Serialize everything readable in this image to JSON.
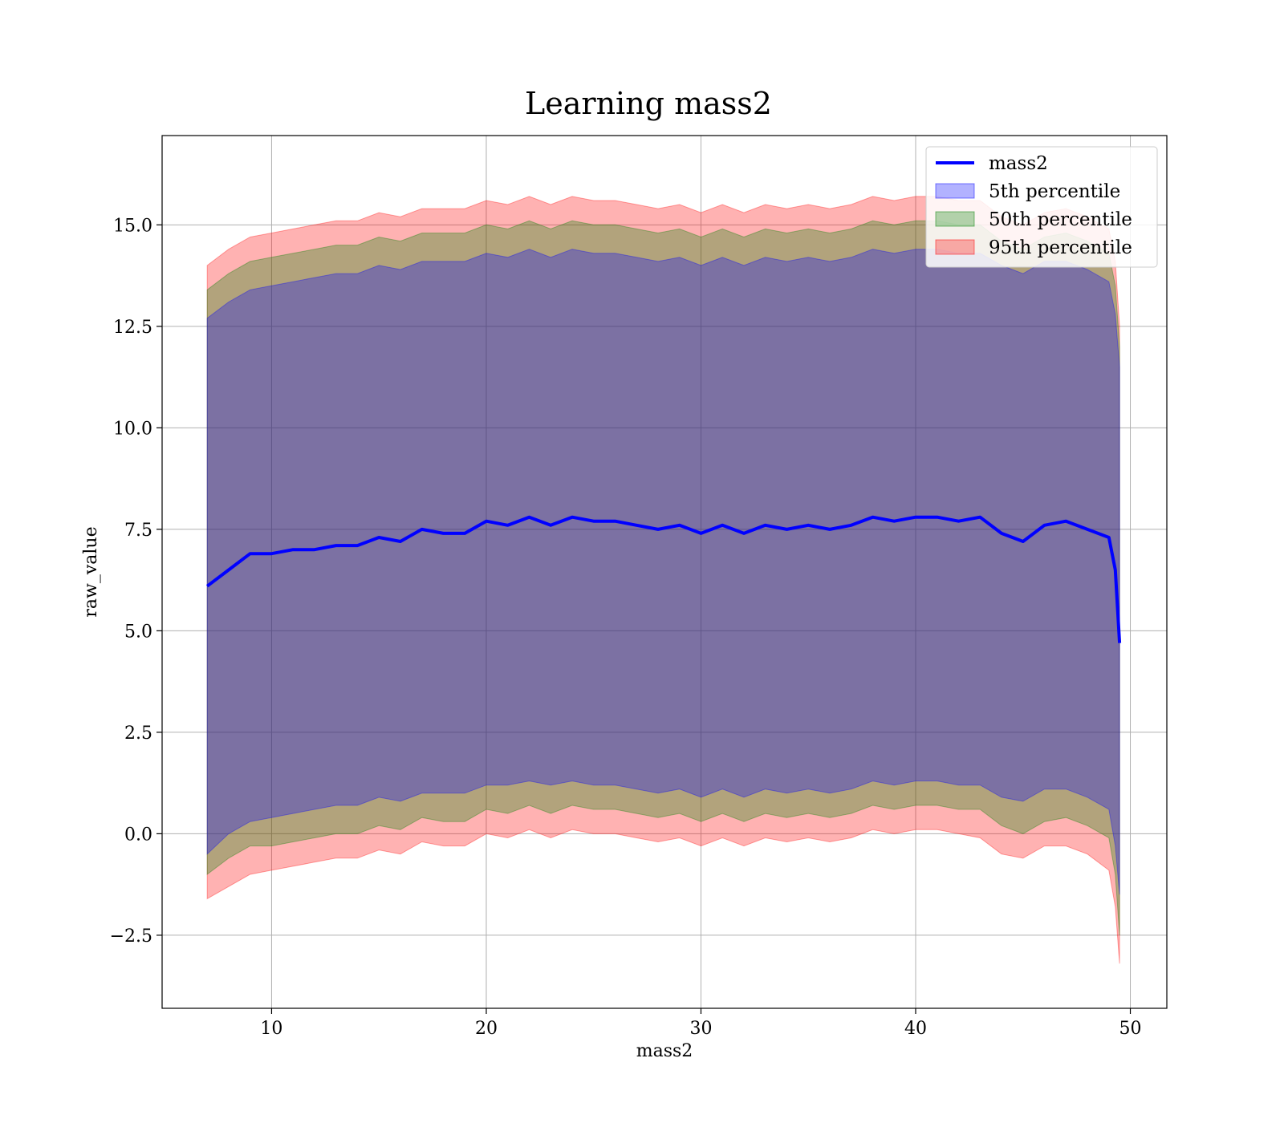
{
  "chart_data": {
    "type": "line",
    "title": "Learning mass2",
    "xlabel": "mass2",
    "ylabel": "raw_value",
    "xlim": [
      4.9,
      51.7
    ],
    "ylim": [
      -4.3,
      17.2
    ],
    "xticks": [
      10,
      20,
      30,
      40,
      50
    ],
    "xtick_labels": [
      "10",
      "20",
      "30",
      "40",
      "50"
    ],
    "yticks": [
      -2.5,
      0.0,
      2.5,
      5.0,
      7.5,
      10.0,
      12.5,
      15.0
    ],
    "ytick_labels": [
      "−2.5",
      "0.0",
      "2.5",
      "5.0",
      "7.5",
      "10.0",
      "12.5",
      "15.0"
    ],
    "grid": true,
    "legend_position": "top-right",
    "x": [
      7.0,
      8.0,
      9.0,
      10.0,
      11.0,
      12.0,
      13.0,
      14.0,
      15.0,
      16.0,
      17.0,
      18.0,
      19.0,
      20.0,
      21.0,
      22.0,
      23.0,
      24.0,
      25.0,
      26.0,
      27.0,
      28.0,
      29.0,
      30.0,
      31.0,
      32.0,
      33.0,
      34.0,
      35.0,
      36.0,
      37.0,
      38.0,
      39.0,
      40.0,
      41.0,
      42.0,
      43.0,
      44.0,
      45.0,
      46.0,
      47.0,
      48.0,
      49.0,
      49.3,
      49.5
    ],
    "series": [
      {
        "name": "mass2",
        "kind": "line",
        "color": "#0000ff",
        "values": [
          6.1,
          6.5,
          6.9,
          6.9,
          7.0,
          7.0,
          7.1,
          7.1,
          7.3,
          7.2,
          7.5,
          7.4,
          7.4,
          7.7,
          7.6,
          7.8,
          7.6,
          7.8,
          7.7,
          7.7,
          7.6,
          7.5,
          7.6,
          7.4,
          7.6,
          7.4,
          7.6,
          7.5,
          7.6,
          7.5,
          7.6,
          7.8,
          7.7,
          7.8,
          7.8,
          7.7,
          7.8,
          7.4,
          7.2,
          7.6,
          7.7,
          7.5,
          7.3,
          6.5,
          4.7
        ]
      },
      {
        "name": "5th percentile",
        "kind": "band",
        "color": "#0000ff",
        "alpha": 0.3,
        "lower": [
          -0.5,
          0.0,
          0.3,
          0.4,
          0.5,
          0.6,
          0.7,
          0.7,
          0.9,
          0.8,
          1.0,
          1.0,
          1.0,
          1.2,
          1.2,
          1.3,
          1.2,
          1.3,
          1.2,
          1.2,
          1.1,
          1.0,
          1.1,
          0.9,
          1.1,
          0.9,
          1.1,
          1.0,
          1.1,
          1.0,
          1.1,
          1.3,
          1.2,
          1.3,
          1.3,
          1.2,
          1.2,
          0.9,
          0.8,
          1.1,
          1.1,
          0.9,
          0.6,
          -0.3,
          -1.5
        ],
        "upper": [
          12.7,
          13.1,
          13.4,
          13.5,
          13.6,
          13.7,
          13.8,
          13.8,
          14.0,
          13.9,
          14.1,
          14.1,
          14.1,
          14.3,
          14.2,
          14.4,
          14.2,
          14.4,
          14.3,
          14.3,
          14.2,
          14.1,
          14.2,
          14.0,
          14.2,
          14.0,
          14.2,
          14.1,
          14.2,
          14.1,
          14.2,
          14.4,
          14.3,
          14.4,
          14.4,
          14.3,
          14.3,
          14.0,
          13.8,
          14.1,
          14.1,
          13.9,
          13.6,
          12.8,
          11.5
        ]
      },
      {
        "name": "50th percentile",
        "kind": "band",
        "color": "#008000",
        "alpha": 0.3,
        "lower": [
          -1.0,
          -0.6,
          -0.3,
          -0.3,
          -0.2,
          -0.1,
          0.0,
          0.0,
          0.2,
          0.1,
          0.4,
          0.3,
          0.3,
          0.6,
          0.5,
          0.7,
          0.5,
          0.7,
          0.6,
          0.6,
          0.5,
          0.4,
          0.5,
          0.3,
          0.5,
          0.3,
          0.5,
          0.4,
          0.5,
          0.4,
          0.5,
          0.7,
          0.6,
          0.7,
          0.7,
          0.6,
          0.6,
          0.2,
          0.0,
          0.3,
          0.4,
          0.2,
          -0.1,
          -1.0,
          -2.5
        ],
        "upper": [
          13.4,
          13.8,
          14.1,
          14.2,
          14.3,
          14.4,
          14.5,
          14.5,
          14.7,
          14.6,
          14.8,
          14.8,
          14.8,
          15.0,
          14.9,
          15.1,
          14.9,
          15.1,
          15.0,
          15.0,
          14.9,
          14.8,
          14.9,
          14.7,
          14.9,
          14.7,
          14.9,
          14.8,
          14.9,
          14.8,
          14.9,
          15.1,
          15.0,
          15.1,
          15.1,
          15.0,
          15.0,
          14.6,
          14.4,
          14.7,
          14.8,
          14.6,
          14.3,
          13.5,
          12.0
        ]
      },
      {
        "name": "95th percentile",
        "kind": "band",
        "color": "#ff0000",
        "alpha": 0.3,
        "lower": [
          -1.6,
          -1.3,
          -1.0,
          -0.9,
          -0.8,
          -0.7,
          -0.6,
          -0.6,
          -0.4,
          -0.5,
          -0.2,
          -0.3,
          -0.3,
          0.0,
          -0.1,
          0.1,
          -0.1,
          0.1,
          0.0,
          0.0,
          -0.1,
          -0.2,
          -0.1,
          -0.3,
          -0.1,
          -0.3,
          -0.1,
          -0.2,
          -0.1,
          -0.2,
          -0.1,
          0.1,
          0.0,
          0.1,
          0.1,
          0.0,
          -0.1,
          -0.5,
          -0.6,
          -0.3,
          -0.3,
          -0.5,
          -0.9,
          -1.8,
          -3.2
        ],
        "upper": [
          14.0,
          14.4,
          14.7,
          14.8,
          14.9,
          15.0,
          15.1,
          15.1,
          15.3,
          15.2,
          15.4,
          15.4,
          15.4,
          15.6,
          15.5,
          15.7,
          15.5,
          15.7,
          15.6,
          15.6,
          15.5,
          15.4,
          15.5,
          15.3,
          15.5,
          15.3,
          15.5,
          15.4,
          15.5,
          15.4,
          15.5,
          15.7,
          15.6,
          15.7,
          15.7,
          15.6,
          15.6,
          15.2,
          15.0,
          15.3,
          15.4,
          15.2,
          14.9,
          14.1,
          12.5
        ]
      }
    ]
  }
}
